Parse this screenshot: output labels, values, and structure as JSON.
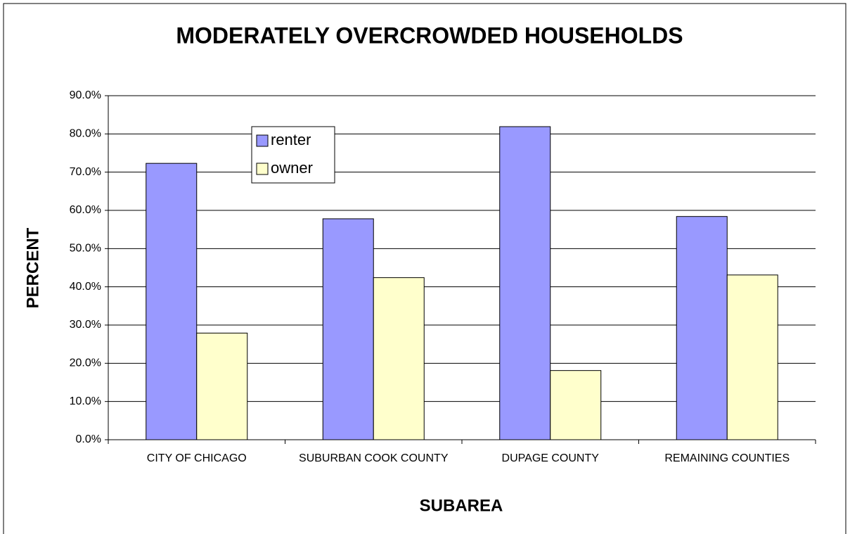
{
  "chart_data": {
    "type": "bar",
    "title": "MODERATELY OVERCROWDED HOUSEHOLDS",
    "x_label": "SUBAREA",
    "y_label": "PERCENT",
    "categories": [
      "CITY OF CHICAGO",
      "SUBURBAN COOK COUNTY",
      "DUPAGE COUNTY",
      "REMAINING COUNTIES"
    ],
    "series": [
      {
        "name": "renter",
        "color": "#9999ff",
        "values": [
          72.3,
          57.8,
          81.9,
          58.4
        ]
      },
      {
        "name": "owner",
        "color": "#ffffcc",
        "values": [
          27.9,
          42.4,
          18.1,
          43.1
        ]
      }
    ],
    "ylim": [
      0,
      90
    ],
    "yticks": [
      {
        "value": 0,
        "label": "0.0%"
      },
      {
        "value": 10,
        "label": "10.0%"
      },
      {
        "value": 20,
        "label": "20.0%"
      },
      {
        "value": 30,
        "label": "30.0%"
      },
      {
        "value": 40,
        "label": "40.0%"
      },
      {
        "value": 50,
        "label": "50.0%"
      },
      {
        "value": 60,
        "label": "60.0%"
      },
      {
        "value": 70,
        "label": "70.0%"
      },
      {
        "value": 80,
        "label": "80.0%"
      },
      {
        "value": 90,
        "label": "90.0%"
      }
    ],
    "grid": true,
    "legend": "upper left"
  }
}
